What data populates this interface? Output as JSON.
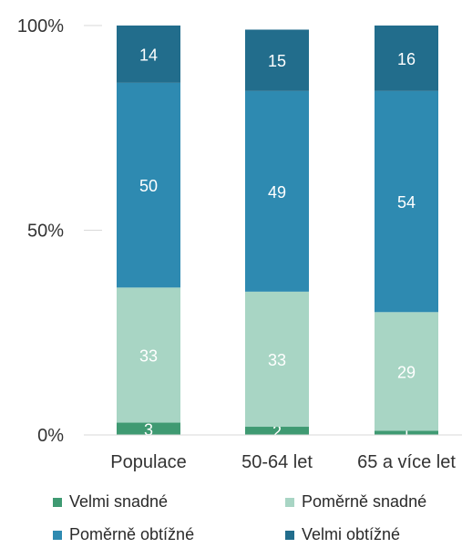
{
  "chart_data": {
    "type": "bar",
    "stacked": true,
    "percent": true,
    "categories": [
      "Populace",
      "50-64 let",
      "65 a více let"
    ],
    "series": [
      {
        "name": "Velmi snadné",
        "values": [
          3,
          2,
          1
        ],
        "color": "#3f9a72",
        "label_color": "#ffffff"
      },
      {
        "name": "Poměrně snadné",
        "values": [
          33,
          33,
          29
        ],
        "color": "#a8d5c4",
        "label_color": "#ffffff"
      },
      {
        "name": "Poměrně obtížné",
        "values": [
          50,
          49,
          54
        ],
        "color": "#2e8ab1",
        "label_color": "#ffffff"
      },
      {
        "name": "Velmi obtížné",
        "values": [
          14,
          15,
          16
        ],
        "color": "#226d8c",
        "label_color": "#ffffff"
      }
    ],
    "y_ticks": [
      "0%",
      "50%",
      "100%"
    ],
    "ylim": [
      0,
      100
    ],
    "grid": false,
    "legend_position": "bottom"
  }
}
